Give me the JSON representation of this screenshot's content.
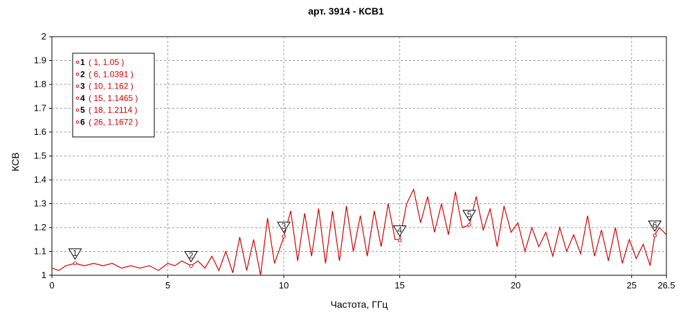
{
  "chart_data": {
    "type": "line",
    "title": "арт. 3914 - КСВ1",
    "xlabel": "Частота, ГГц",
    "ylabel": "КСВ",
    "xlim": [
      0,
      26.5
    ],
    "ylim": [
      1,
      2
    ],
    "x_ticks": [
      "0",
      "5",
      "10",
      "15",
      "20",
      "25",
      "26.5"
    ],
    "y_ticks": [
      "1",
      "1.1",
      "1.2",
      "1.3",
      "1.4",
      "1.5",
      "1.6",
      "1.7",
      "1.8",
      "1.9",
      "2"
    ],
    "grid": true,
    "legend_position": "top-left",
    "series": [
      {
        "color": "#cc0000",
        "x": [
          0,
          0.3,
          0.6,
          1,
          1.4,
          1.8,
          2.2,
          2.6,
          3,
          3.4,
          3.8,
          4.2,
          4.6,
          5,
          5.3,
          5.6,
          6,
          6.3,
          6.6,
          6.9,
          7.2,
          7.5,
          7.8,
          8.1,
          8.4,
          8.7,
          9,
          9.3,
          9.6,
          10,
          10.3,
          10.6,
          10.9,
          11.2,
          11.5,
          11.8,
          12.1,
          12.4,
          12.7,
          13,
          13.3,
          13.6,
          13.9,
          14.2,
          14.5,
          14.8,
          15,
          15.3,
          15.6,
          15.9,
          16.2,
          16.5,
          16.8,
          17.1,
          17.4,
          17.7,
          18,
          18.3,
          18.6,
          18.9,
          19.2,
          19.5,
          19.8,
          20.1,
          20.4,
          20.7,
          21,
          21.3,
          21.6,
          21.9,
          22.2,
          22.5,
          22.8,
          23.1,
          23.4,
          23.7,
          24,
          24.3,
          24.6,
          24.9,
          25.2,
          25.5,
          25.8,
          26,
          26.2,
          26.5
        ],
        "y": [
          1.03,
          1.02,
          1.04,
          1.05,
          1.04,
          1.05,
          1.04,
          1.05,
          1.03,
          1.04,
          1.03,
          1.04,
          1.02,
          1.05,
          1.04,
          1.06,
          1.04,
          1.06,
          1.03,
          1.08,
          1.02,
          1.1,
          1.01,
          1.16,
          1.02,
          1.15,
          1.0,
          1.24,
          1.05,
          1.16,
          1.27,
          1.06,
          1.26,
          1.08,
          1.28,
          1.05,
          1.27,
          1.06,
          1.29,
          1.1,
          1.25,
          1.08,
          1.27,
          1.12,
          1.3,
          1.15,
          1.15,
          1.3,
          1.36,
          1.22,
          1.33,
          1.18,
          1.3,
          1.17,
          1.35,
          1.2,
          1.21,
          1.33,
          1.19,
          1.28,
          1.12,
          1.29,
          1.18,
          1.22,
          1.1,
          1.2,
          1.12,
          1.18,
          1.08,
          1.2,
          1.1,
          1.17,
          1.09,
          1.25,
          1.08,
          1.19,
          1.06,
          1.2,
          1.05,
          1.15,
          1.07,
          1.13,
          1.04,
          1.17,
          1.2,
          1.17
        ]
      }
    ],
    "markers": [
      {
        "label": "1",
        "x": 1,
        "y": 1.05
      },
      {
        "label": "2",
        "x": 6,
        "y": 1.0391
      },
      {
        "label": "3",
        "x": 10,
        "y": 1.162
      },
      {
        "label": "4",
        "x": 15,
        "y": 1.1465
      },
      {
        "label": "5",
        "x": 18,
        "y": 1.2114
      },
      {
        "label": "6",
        "x": 26,
        "y": 1.1672
      }
    ],
    "legend_entries": [
      {
        "num": "1",
        "text": "( 1, 1.05 )"
      },
      {
        "num": "2",
        "text": "( 6, 1.0391 )"
      },
      {
        "num": "3",
        "text": "( 10, 1.162 )"
      },
      {
        "num": "4",
        "text": "( 15, 1.1465 )"
      },
      {
        "num": "5",
        "text": "( 18, 1.2114 )"
      },
      {
        "num": "6",
        "text": "( 26, 1.1672 )"
      }
    ]
  }
}
